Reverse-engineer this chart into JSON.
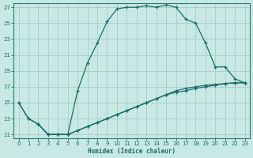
{
  "xlabel": "Humidex (Indice chaleur)",
  "bg_color": "#c8e8e4",
  "grid_color": "#a8ccc8",
  "line_color": "#1a6b6b",
  "spine_color": "#2a7a7a",
  "xlim": [
    -0.5,
    23.5
  ],
  "ylim": [
    10.5,
    27.5
  ],
  "xticks": [
    0,
    1,
    2,
    3,
    4,
    5,
    6,
    7,
    8,
    9,
    10,
    11,
    12,
    13,
    14,
    15,
    16,
    17,
    18,
    19,
    20,
    21,
    22,
    23
  ],
  "yticks": [
    11,
    13,
    15,
    17,
    19,
    21,
    23,
    25,
    27
  ],
  "line1_x": [
    0,
    1,
    2,
    3,
    4,
    5,
    6,
    7,
    8,
    9,
    10,
    11,
    12,
    13,
    14,
    15,
    16,
    17,
    18,
    19,
    20,
    21,
    22,
    23
  ],
  "line1_y": [
    15,
    13,
    12.3,
    11.0,
    11.0,
    11.0,
    16.5,
    20.0,
    22.5,
    25.2,
    26.8,
    27.0,
    27.0,
    27.2,
    27.0,
    27.3,
    27.0,
    25.5,
    25.0,
    22.5,
    19.5,
    19.5,
    18.0,
    17.5
  ],
  "line2_x": [
    0,
    1,
    2,
    3,
    4,
    5,
    6,
    7,
    8,
    9,
    10,
    11,
    12,
    13,
    14,
    15,
    16,
    17,
    18,
    19,
    20,
    21,
    22,
    23
  ],
  "line2_y": [
    15,
    13,
    12.3,
    11.0,
    11.0,
    11.0,
    11.5,
    12.0,
    12.5,
    13.0,
    13.5,
    14.0,
    14.5,
    15.0,
    15.5,
    16.0,
    16.5,
    16.8,
    17.0,
    17.2,
    17.3,
    17.4,
    17.5,
    17.5
  ],
  "line3_x": [
    2,
    3,
    4,
    5,
    6,
    7,
    8,
    9,
    10,
    11,
    12,
    13,
    14,
    15,
    16,
    17,
    18,
    19,
    20,
    21,
    22,
    23
  ],
  "line3_y": [
    12.3,
    11.0,
    11.0,
    11.0,
    11.5,
    12.0,
    12.5,
    13.0,
    13.5,
    14.0,
    14.5,
    15.0,
    15.5,
    16.0,
    16.3,
    16.5,
    16.8,
    17.0,
    17.2,
    17.4,
    17.5,
    17.5
  ]
}
